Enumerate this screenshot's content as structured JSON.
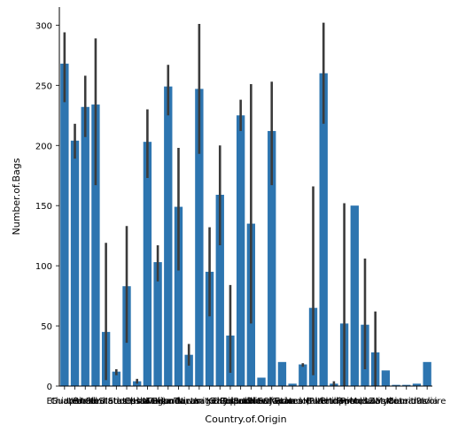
{
  "chart_data": {
    "type": "bar",
    "xlabel": "Country.of.Origin",
    "ylabel": "Number.of.Bags",
    "ylim": [
      0,
      315
    ],
    "yticks": [
      0,
      50,
      100,
      150,
      200,
      250,
      300
    ],
    "grid": false,
    "legend": "none",
    "bar_color": "#2d75b0",
    "error_color": "#3b3b3b",
    "categories": [
      "Ethiopia",
      "Guatemala",
      "Brazil",
      "Peru",
      "United States",
      "United States (Hawaii)",
      "Indonesia",
      "China",
      "Costa Rica",
      "Mexico",
      "Uganda",
      "Honduras",
      "Taiwan",
      "Nicaragua",
      "Tanzania, United Republic Of",
      "Kenya",
      "Thailand",
      "Colombia",
      "Panama",
      "Papua New Guinea",
      "El Salvador",
      "Japan",
      "Ecuador",
      "United States (Puerto Rico)",
      "Haiti",
      "Burundi",
      "Vietnam",
      "Philippines",
      "Rwanda",
      "Malawi",
      "Laos",
      "Zambia",
      "Myanmar",
      "Mauritius",
      "Cote d?Ivoire",
      "India"
    ],
    "values": [
      268,
      204,
      232,
      234,
      45,
      12,
      83,
      4,
      203,
      103,
      249,
      149,
      26,
      247,
      95,
      159,
      42,
      225,
      135,
      7,
      212,
      20,
      2,
      18,
      65,
      260,
      2,
      52,
      150,
      51,
      28,
      13,
      1,
      1,
      2,
      20
    ],
    "error_low": [
      236,
      189,
      207,
      167,
      5,
      9,
      36,
      2,
      173,
      87,
      225,
      96,
      17,
      193,
      58,
      117,
      11,
      212,
      52,
      7,
      167,
      20,
      2,
      16,
      9,
      218,
      0,
      0,
      150,
      14,
      0,
      13,
      1,
      1,
      2,
      20
    ],
    "error_high": [
      294,
      218,
      258,
      289,
      119,
      14,
      133,
      6,
      230,
      117,
      267,
      198,
      35,
      301,
      132,
      200,
      84,
      238,
      251,
      7,
      253,
      20,
      2,
      19,
      166,
      302,
      4,
      152,
      150,
      106,
      62,
      13,
      1,
      1,
      2,
      20
    ]
  }
}
